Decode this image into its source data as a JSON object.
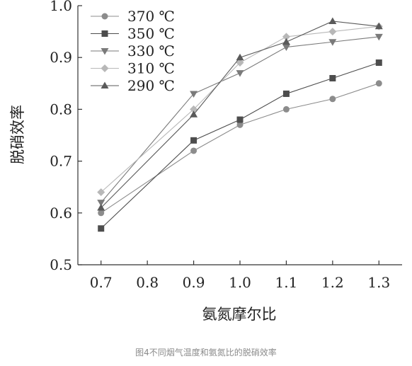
{
  "chart_data": {
    "type": "line",
    "title": "",
    "xlabel": "氨氮摩尔比",
    "ylabel": "脱硝效率",
    "x_ticks": [
      "0.7",
      "0.8",
      "0.9",
      "1.0",
      "1.1",
      "1.2",
      "1.3"
    ],
    "y_ticks": [
      "0.5",
      "0.6",
      "0.7",
      "0.8",
      "0.9",
      "1.0"
    ],
    "xlim": [
      0.65,
      1.35
    ],
    "ylim": [
      0.5,
      1.0
    ],
    "legend_position": "top-left",
    "series": [
      {
        "name": "370 ℃",
        "marker": "circle",
        "color": "#8c8c8c",
        "x": [
          0.7,
          0.9,
          1.0,
          1.1,
          1.2,
          1.3
        ],
        "y": [
          0.6,
          0.72,
          0.77,
          0.8,
          0.82,
          0.85
        ]
      },
      {
        "name": "350 ℃",
        "marker": "square",
        "color": "#4d4d4d",
        "x": [
          0.7,
          0.9,
          1.0,
          1.1,
          1.2,
          1.3
        ],
        "y": [
          0.57,
          0.74,
          0.78,
          0.83,
          0.86,
          0.89
        ]
      },
      {
        "name": "330 ℃",
        "marker": "triangle-down",
        "color": "#7a7a7a",
        "x": [
          0.7,
          0.9,
          1.0,
          1.1,
          1.2,
          1.3
        ],
        "y": [
          0.62,
          0.83,
          0.87,
          0.92,
          0.93,
          0.94
        ]
      },
      {
        "name": "310 ℃",
        "marker": "diamond",
        "color": "#b8b8b8",
        "x": [
          0.7,
          0.9,
          1.0,
          1.1,
          1.2,
          1.3
        ],
        "y": [
          0.64,
          0.8,
          0.89,
          0.94,
          0.95,
          0.96
        ]
      },
      {
        "name": "290 ℃",
        "marker": "triangle-up",
        "color": "#5a5a5a",
        "x": [
          0.7,
          0.9,
          1.0,
          1.1,
          1.2,
          1.3
        ],
        "y": [
          0.61,
          0.79,
          0.9,
          0.93,
          0.97,
          0.96
        ]
      }
    ]
  },
  "caption": "图4不同烟气温度和氨氮比的脱硝效率"
}
